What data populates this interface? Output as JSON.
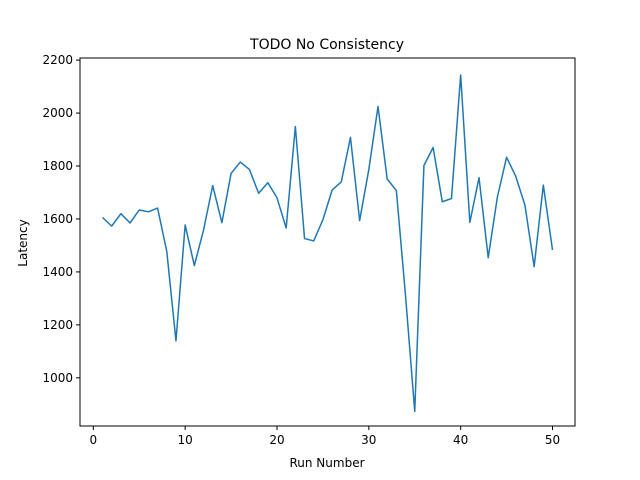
{
  "chart_data": {
    "type": "line",
    "title": "TODO No Consistency",
    "xlabel": "Run Number",
    "ylabel": "Latency",
    "xlim": [
      -1.45,
      52.45
    ],
    "ylim": [
      818,
      2208
    ],
    "xticks": [
      0,
      10,
      20,
      30,
      40,
      50
    ],
    "yticks": [
      1000,
      1200,
      1400,
      1600,
      1800,
      2000,
      2200
    ],
    "grid": false,
    "line_color": "#1f77b4",
    "x": [
      1,
      2,
      3,
      4,
      5,
      6,
      7,
      8,
      9,
      10,
      11,
      12,
      13,
      14,
      15,
      16,
      17,
      18,
      19,
      20,
      21,
      22,
      23,
      24,
      25,
      26,
      27,
      28,
      29,
      30,
      31,
      32,
      33,
      34,
      35,
      36,
      37,
      38,
      39,
      40,
      41,
      42,
      43,
      44,
      45,
      46,
      47,
      48,
      49,
      50
    ],
    "y": [
      1606,
      1573,
      1620,
      1585,
      1634,
      1627,
      1641,
      1477,
      1140,
      1577,
      1424,
      1558,
      1726,
      1586,
      1772,
      1815,
      1787,
      1697,
      1737,
      1680,
      1566,
      1949,
      1526,
      1517,
      1597,
      1709,
      1740,
      1908,
      1594,
      1787,
      2025,
      1751,
      1707,
      1309,
      873,
      1802,
      1870,
      1665,
      1677,
      2144,
      1587,
      1756,
      1454,
      1683,
      1833,
      1761,
      1652,
      1420,
      1728,
      1483
    ]
  }
}
